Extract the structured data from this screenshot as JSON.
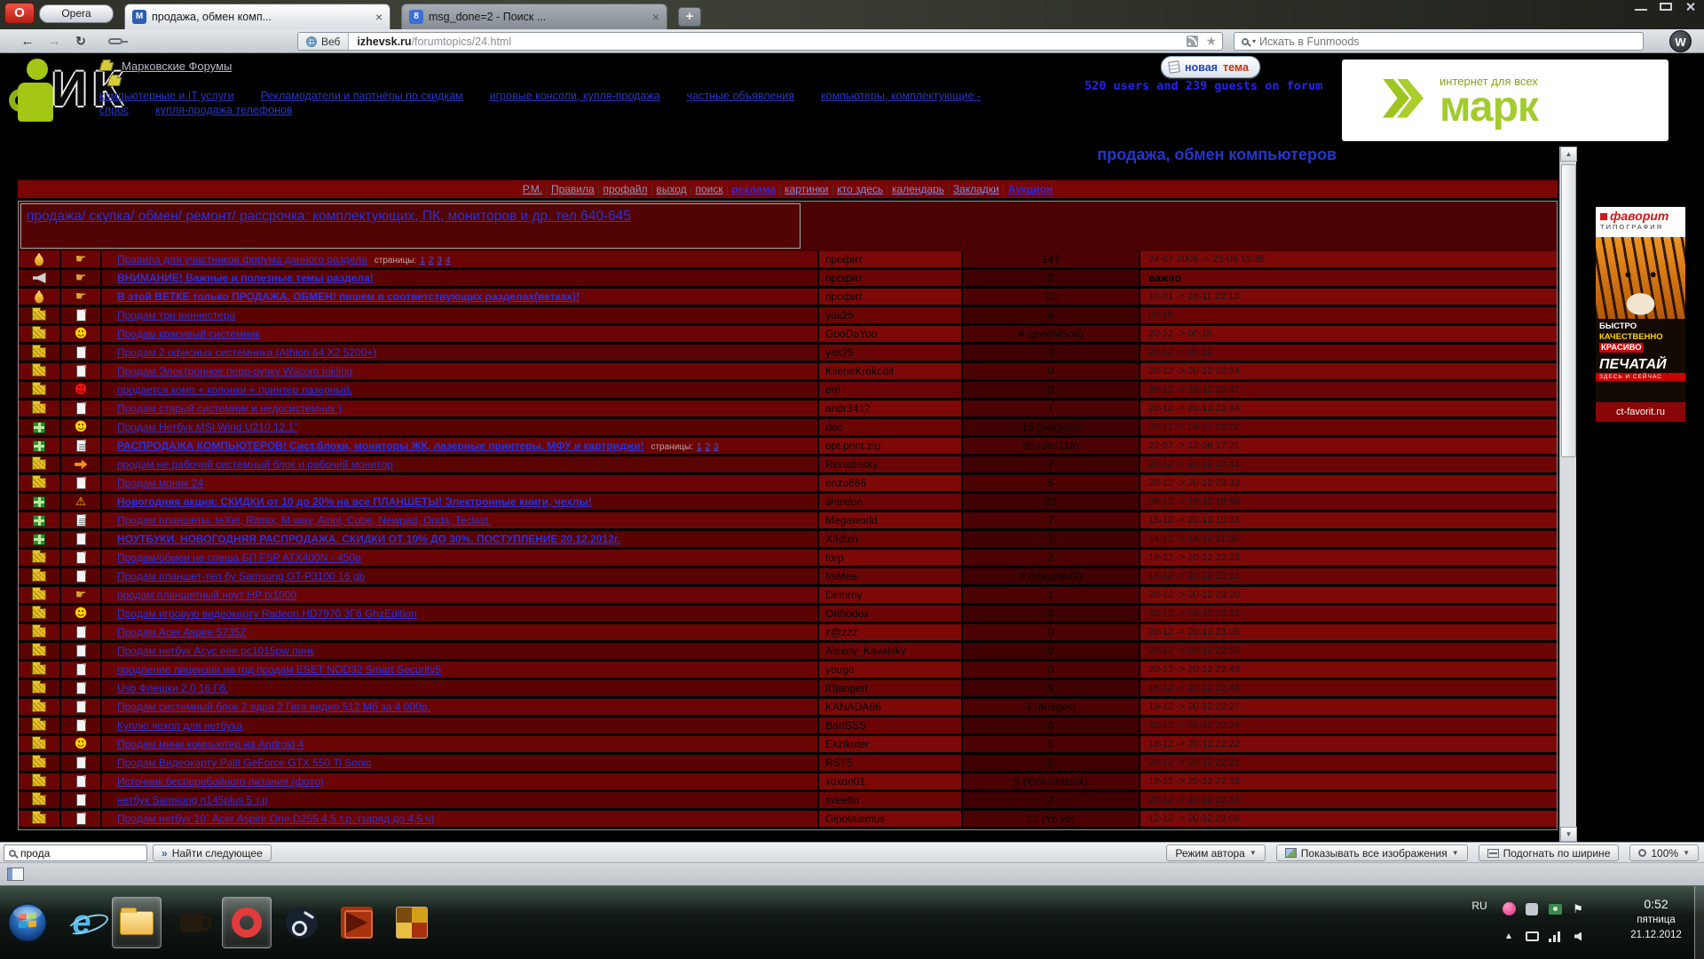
{
  "icons": {
    "close": "×",
    "plus": "+",
    "back": "←",
    "forward": "→",
    "reload": "↻",
    "star": "★",
    "caret": "▾",
    "dropdown": "▼",
    "next": "»",
    "smile": "☻",
    "hand": "☛",
    "warning": "⚠",
    "up_arrow": "▲",
    "flag": "⚑"
  },
  "browser": {
    "opera_badge": "O",
    "menu_label": "Opera",
    "tabs": [
      {
        "title": "продажа, обмен комп...",
        "favicon": "М"
      },
      {
        "title": "msg_done=2 - Поиск ...",
        "favicon": "8"
      }
    ],
    "address": {
      "badge": "Веб",
      "domain": "izhevsk.ru",
      "path": "/forumtopics/24.html"
    },
    "search": {
      "placeholder": "Искать в Funmoods"
    },
    "extension_badge": "W"
  },
  "forum": {
    "site_link": "Марковские Форумы",
    "header_links": [
      "компьютерные и IT услуги",
      "Рекламодатели и партнёры по скидкам",
      "игровые консоли, купля-продажа",
      "частные объявления",
      "компьютеры, комплектующие - спрос",
      "купля-продажа телефонов"
    ],
    "new_topic": {
      "word1": "новая",
      "word2": "тема"
    },
    "online_status": "520 users and 239 guests on forum",
    "brand": {
      "tagline": "интернет для всех",
      "name": "марк"
    },
    "page_title": "продажа, обмен компьютеров",
    "logo_text": {
      "i": "И",
      "k": "К"
    },
    "nav_items": [
      {
        "label": "Р.М.",
        "style": "muted"
      },
      {
        "label": "Правила",
        "style": "muted"
      },
      {
        "label": "профайл",
        "style": "muted"
      },
      {
        "label": "выход",
        "style": "muted"
      },
      {
        "label": "поиск",
        "style": "muted"
      },
      {
        "label": "реклама",
        "style": "bold"
      },
      {
        "label": "картинки",
        "style": "normal"
      },
      {
        "label": "кто здесь",
        "style": "normal"
      },
      {
        "label": "календарь",
        "style": "normal"
      },
      {
        "label": "Закладки",
        "style": "normal"
      },
      {
        "label": "Аукцион",
        "style": "bold"
      }
    ],
    "breadcrumb": "продажа/ скупка/ обмен/ ремонт/ рассрочка: комплектующих, ПК, мониторов и др. тел 640-645",
    "pages_label": "страницы:",
    "topics": [
      {
        "icon1": "flame",
        "icon2": "hand",
        "title": "Правила для участников форума данного раздела",
        "pages": [
          "1",
          "2",
          "3",
          "4"
        ],
        "author": "профит",
        "replies": "147",
        "date": "24-07-2009 -> 25-06 15:35"
      },
      {
        "icon1": "announce",
        "icon2": "hand",
        "title": "ВНИМАНИЕ! Важные и полезные темы раздела!",
        "bold": true,
        "author": "профит",
        "replies": "0",
        "date": "важно",
        "date_bold": true
      },
      {
        "icon1": "flame",
        "icon2": "hand",
        "title": "В этой ВЕТКЕ только ПРОДАЖА, ОБМЕН! пишем в соответствующих разделах(ветках)!",
        "bold": true,
        "author": "профит",
        "replies": "20",
        "date": "10-01 -> 28-11 22:13"
      },
      {
        "icon1": "folder",
        "icon2": "page",
        "title": "Продам три винчестера",
        "author": "yak25",
        "replies": "0",
        "date": "00:15"
      },
      {
        "icon1": "folder",
        "icon2": "smile",
        "title": "Продам красивый системник",
        "author": "GooDaYoo",
        "replies": "4 (greeNGod)",
        "date": "20-12 -> 00:15"
      },
      {
        "icon1": "folder",
        "icon2": "page",
        "title": "Продам 2 офисных системника (Athlon 64 X2 5200+)",
        "author": "yak25",
        "replies": "2",
        "date": "20-12 -> 00:12"
      },
      {
        "icon1": "folder",
        "icon2": "page",
        "title": "Продам Электронное перо-ручку Wacom Inkling",
        "author": "KlieneKrokodil",
        "replies": "0",
        "date": "20-12 -> 20-12 23:54"
      },
      {
        "icon1": "folder",
        "icon2": "smile_red",
        "title": "продается комп + колонки + принтер лазерный.",
        "author": "erj!",
        "replies": "0",
        "date": "20-12 -> 20-12 23:47"
      },
      {
        "icon1": "folder",
        "icon2": "page",
        "title": "Продам старый системник и недосистемник )",
        "author": "andr3412",
        "replies": "1",
        "date": "20-12 -> 20-12 23:44"
      },
      {
        "icon1": "gift",
        "icon2": "smile",
        "title": "Продам Нетбук MSI Wind U210 12.1\"",
        "author": "doc",
        "replies": "15 (Sergeyi)",
        "date": "20-11 -> 18-12 19:22"
      },
      {
        "icon1": "gift",
        "icon2": "pages",
        "title": "РАСПРОДАЖА КОМПЬЮТЕРОВ! Сист.блоки, мониторы ЖК, лазерные принтеры, МФУ и картриджи!",
        "bold": true,
        "pages": [
          "1",
          "2",
          "3"
        ],
        "author": "opt.print.zip",
        "replies": "85 (den118)",
        "date": "22-07 -> 12-08 17:21"
      },
      {
        "icon1": "folder",
        "icon2": "arrow",
        "title": "продам не рабочий системный блок и рабочий монитор",
        "author": "Renatinsky",
        "replies": "7",
        "date": "20-12 -> 20-12 23:41"
      },
      {
        "icon1": "folder",
        "icon2": "page",
        "title": "Продам моник 24",
        "author": "enzo666",
        "replies": "5",
        "date": "20-12 -> 20-12 23:33"
      },
      {
        "icon1": "gift",
        "icon2": "warning",
        "title": "Новогодняя акция: СКИДКИ от 10 до 20% на все ПЛАНШЕТЫ! Электронные книги, чехлы!",
        "bold": true,
        "author": "sheldon",
        "replies": "33",
        "date": "08-12 -> 18-12 16:56"
      },
      {
        "icon1": "gift",
        "icon2": "pages",
        "title": "Продам планшеты. teXet, Ritmix, M-way, Ainol, Cube, Newpad, Onda, Teclast.",
        "author": "Megaworld",
        "replies": "7",
        "date": "15-12 -> 20-12 10:33"
      },
      {
        "icon1": "gift",
        "icon2": "page",
        "title": "НОУТБУКИ. НОВОГОДНЯЯ РАСПРОДАЖА. СКИДКИ ОТ 10% ДО 30%. ПОСТУПЛЕНИЕ 20.12.2012г.",
        "bold": true,
        "author": "X3dizh",
        "replies": "7",
        "date": "14-12 -> 14-12 11:08"
      },
      {
        "icon1": "folder",
        "icon2": "page",
        "title": "Продам/обмен не спеша БП FSP ATX400N - 450р",
        "author": "forp",
        "replies": "2",
        "date": "19-12 -> 20-12 23:23"
      },
      {
        "icon1": "folder",
        "icon2": "page",
        "title": "Продам планшет-тел бу Samsung GT-P3100 16 gb",
        "author": "ItsMee",
        "replies": "4 (Медовый)",
        "date": "14-12 -> 20-12 23:21"
      },
      {
        "icon1": "folder",
        "icon2": "hand",
        "title": "продам планшетный ноут HP tx1000",
        "author": "Demmy",
        "replies": "1",
        "date": "20-12 -> 20-12 23:20"
      },
      {
        "icon1": "folder",
        "icon2": "smile",
        "title": "Продам игровую видеокарту Radeon HD7970 3Гб GhzEdition",
        "author": "Orthodox",
        "replies": "0",
        "date": "20-12 -> 20-12 23:12",
        "sep_after": true
      },
      {
        "icon1": "folder",
        "icon2": "page",
        "title": "Продам Acer Aspire 5735Z",
        "author": "z@zzz",
        "replies": "0",
        "date": "20-12 -> 20-12 23:06"
      },
      {
        "icon1": "folder",
        "icon2": "page",
        "title": "Продам нетбук Асус eee pc1015pw пинк",
        "author": "Alexey_Kavalsky",
        "replies": "0",
        "date": "20-12 -> 20-12 22:52"
      },
      {
        "icon1": "folder",
        "icon2": "page",
        "title": "продление лицензии на год продам ESET NOD32 Smart Security5",
        "author": "yougo",
        "replies": "0",
        "date": "20-12 -> 20-12 22:49"
      },
      {
        "icon1": "folder",
        "icon2": "page",
        "title": "Usb Флешки 2.0 16 Гб.",
        "author": "lDjangerl",
        "replies": "9",
        "date": "18-12 -> 20-12 22:43"
      },
      {
        "icon1": "folder",
        "icon2": "page",
        "title": "Продам системный блок 2 ядра 2 Гига видео 512 Мб за 4 000р.",
        "author": "KANADA86",
        "replies": "3 (Amigos)",
        "date": "19-12 -> 20-12 22:27"
      },
      {
        "icon1": "folder",
        "icon2": "page",
        "title": "Куплю чехол для нетбука",
        "author": "BartSSS",
        "replies": "0",
        "date": "20-12 -> 20-12 22:24"
      },
      {
        "icon1": "folder",
        "icon2": "smile",
        "title": "Продам мини компьютер на Android 4",
        "author": "Ekzikuter",
        "replies": "5",
        "date": "19-12 -> 20-12 22:22"
      },
      {
        "icon1": "folder",
        "icon2": "page",
        "title": "Продам Видеокарту Palit GeForce GTX 550 Ti Sonic",
        "author": "RST5",
        "replies": "0",
        "date": "20-12 -> 20-12 22:21"
      },
      {
        "icon1": "folder",
        "icon2": "page",
        "title": "Источник бесперебойного питания (фото)",
        "author": "хохол01",
        "replies": "5 (lorik-malorik)",
        "date": "19-12 -> 20-12 22:16"
      },
      {
        "icon1": "folder",
        "icon2": "page",
        "title": "нетбук Samsung n145plus 5 т.р",
        "author": "sveetlu",
        "replies": "2",
        "date": "20-12 -> 20-12 22:13"
      },
      {
        "icon1": "folder",
        "icon2": "page",
        "title": "Продам нетбук 10` Acer Aspire One D255 4,5 т.р. (заряд до 4,5 ч)",
        "author": "Gipotalamus",
        "replies": "12 (Yo yo)",
        "date": "12-12 -> 20-12 22:06"
      }
    ]
  },
  "ad": {
    "brand": "фаворит",
    "subtitle": "ТИПОГРАФИЯ",
    "line1": "БЫСТРО",
    "line2": "КАЧЕСТВЕННО",
    "line3": "КРАСИВО",
    "line4": "ПЕЧАТАЙ",
    "line5": "ЗДЕСЬ И СЕЙЧАС",
    "site": "ct-favorit.ru"
  },
  "findbar": {
    "query": "прода",
    "next_label": "Найти следующее",
    "author_mode": "Режим автора",
    "show_images": "Показывать все изображения",
    "fit_width": "Подогнать по ширине",
    "zoom": "100%"
  },
  "taskbar": {
    "language": "RU",
    "time": "0:52",
    "weekday": "пятница",
    "date": "21.12.2012"
  }
}
